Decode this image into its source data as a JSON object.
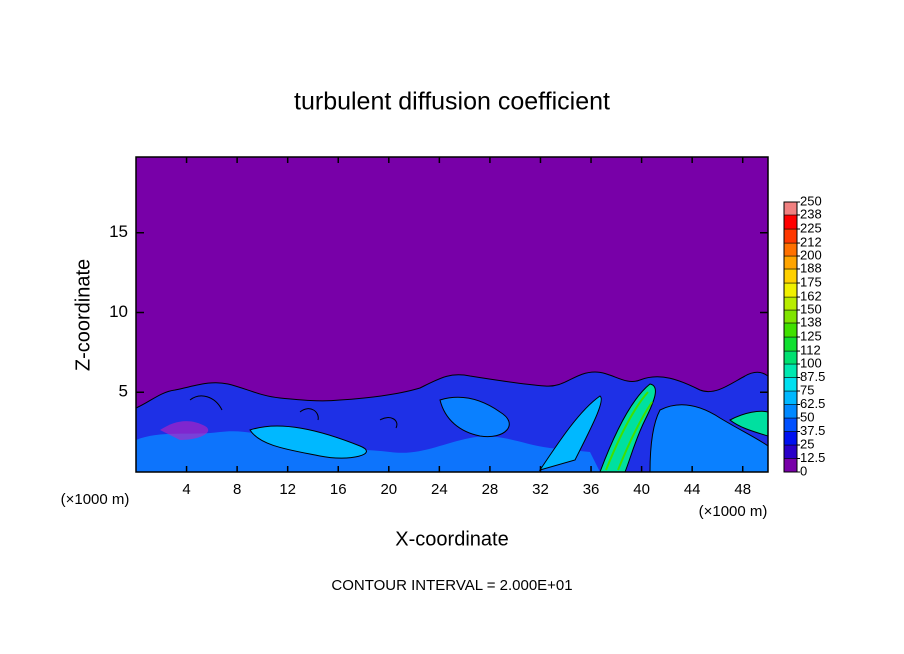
{
  "chart_data": {
    "type": "contour",
    "title": "turbulent diffusion coefficient",
    "x_label": "X-coordinate",
    "y_label": "Z-coordinate",
    "x_unit": "(×1000 m)",
    "footnote": "CONTOUR INTERVAL = 2.000E+01",
    "xlim": [
      0,
      50
    ],
    "xticks": [
      4,
      8,
      12,
      16,
      20,
      24,
      28,
      32,
      36,
      40,
      44,
      48
    ],
    "ylim": [
      0,
      19.75
    ],
    "yticks": [
      5,
      10,
      15
    ],
    "colorbar": {
      "ticks": [
        0,
        12.5,
        25,
        37.5,
        50,
        62.5,
        75,
        87.5,
        100,
        112,
        125,
        138,
        150,
        162,
        175,
        188,
        200,
        212,
        225,
        238,
        250
      ],
      "colors": [
        "#7800a8",
        "#2a00c8",
        "#0010f0",
        "#0050ff",
        "#0088ff",
        "#00b8ff",
        "#00e0f0",
        "#00e8b0",
        "#00e070",
        "#10e030",
        "#40e000",
        "#80e400",
        "#b8ec00",
        "#f0f000",
        "#ffd000",
        "#ffa400",
        "#ff7000",
        "#ff3800",
        "#ff0000",
        "#f08080"
      ]
    },
    "grid": false
  }
}
